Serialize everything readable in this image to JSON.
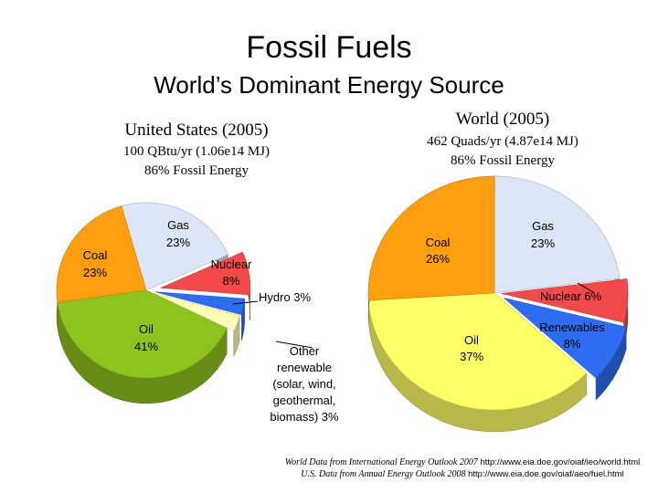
{
  "title": "Fossil Fuels",
  "subtitle": "World’s Dominant Energy Source",
  "chart_data": [
    {
      "type": "pie",
      "title": "United States (2005)",
      "subtitle_lines": [
        "100 QBtu/yr (1.06e14 MJ)",
        "86% Fossil Energy"
      ],
      "slices": [
        {
          "label": "Gas",
          "value": 23,
          "display": "23%",
          "color": "#dde6f6"
        },
        {
          "label": "Nuclear",
          "value": 8,
          "display": "8%",
          "color": "#f24a4a"
        },
        {
          "label": "Hydro",
          "value": 3,
          "display": "3%",
          "color": "#2f6df0"
        },
        {
          "label": "Other renewable (solar, wind, geothermal, biomass)",
          "value": 3,
          "display": "3%",
          "color": "#ffffb8"
        },
        {
          "label": "Oil",
          "value": 41,
          "display": "41%",
          "color": "#8fc41f"
        },
        {
          "label": "Coal",
          "value": 23,
          "display": "23%",
          "color": "#ff9e0e"
        }
      ],
      "label_texts": {
        "gas": [
          "Gas",
          "23%"
        ],
        "nuclear": [
          "Nuclear",
          "8%"
        ],
        "hydro": [
          "Hydro 3%"
        ],
        "other": [
          "Other",
          "renewable",
          "(solar, wind,",
          "geothermal,",
          "biomass) 3%"
        ],
        "oil": [
          "Oil",
          "41%"
        ],
        "coal": [
          "Coal",
          "23%"
        ]
      }
    },
    {
      "type": "pie",
      "title": "World (2005)",
      "subtitle_lines": [
        "462 Quads/yr (4.87e14 MJ)",
        "86% Fossil Energy"
      ],
      "slices": [
        {
          "label": "Gas",
          "value": 23,
          "display": "23%",
          "color": "#dde6f6"
        },
        {
          "label": "Nuclear",
          "value": 6,
          "display": "6%",
          "color": "#f24a4a"
        },
        {
          "label": "Renewables",
          "value": 8,
          "display": "8%",
          "color": "#2f6df0"
        },
        {
          "label": "Oil",
          "value": 37,
          "display": "37%",
          "color": "#ffff66"
        },
        {
          "label": "Coal",
          "value": 26,
          "display": "26%",
          "color": "#ff9e0e"
        }
      ],
      "label_texts": {
        "gas": [
          "Gas",
          "23%"
        ],
        "nuclear": [
          "Nuclear  6%"
        ],
        "renewables": [
          "Renewables",
          "8%"
        ],
        "oil": [
          "Oil",
          "37%"
        ],
        "coal": [
          "Coal",
          "26%"
        ]
      }
    }
  ],
  "sources": [
    {
      "italic": "World Data from International Energy Outlook 2007",
      "url": "http://www.eia.doe.gov/oiaf/ieo/world.html"
    },
    {
      "italic": "U.S. Data from Annual Energy Outlook 2008",
      "url": "http://www.eia.doe.gov/oiaf/aeo/fuel.html"
    }
  ]
}
